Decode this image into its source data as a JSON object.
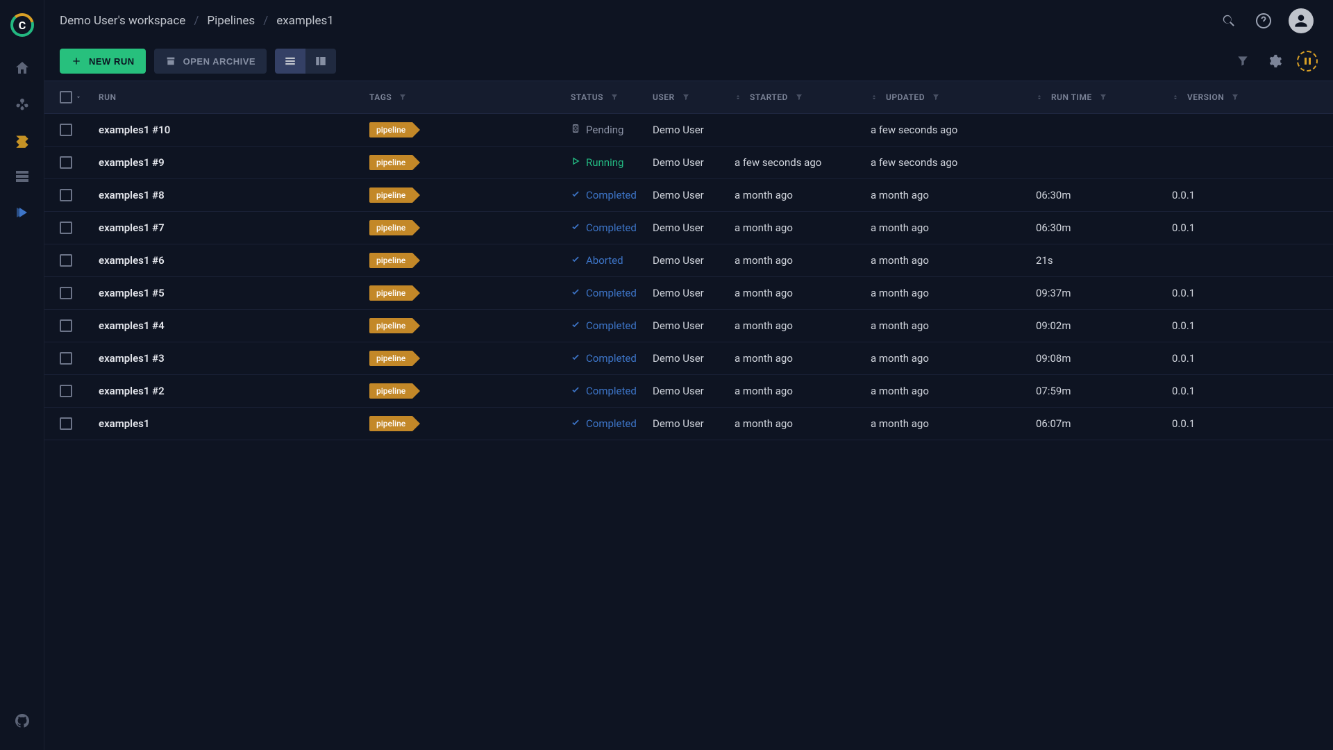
{
  "breadcrumb": [
    "Demo User's workspace",
    "Pipelines",
    "examples1"
  ],
  "toolbar": {
    "new_run": "NEW RUN",
    "open_archive": "OPEN ARCHIVE"
  },
  "columns": {
    "run": "RUN",
    "tags": "TAGS",
    "status": "STATUS",
    "user": "USER",
    "started": "STARTED",
    "updated": "UPDATED",
    "runtime": "RUN TIME",
    "version": "VERSION"
  },
  "tag_label": "pipeline",
  "colors": {
    "background": "#0e1422",
    "header_bg": "#151c2e",
    "accent_green": "#27c07d",
    "accent_amber": "#d9a026",
    "tag_bg": "#c38828",
    "status_pending": "#8a91a4",
    "status_running": "#23b881",
    "status_completed": "#3d75c8",
    "text_primary": "#d0d4dc",
    "text_muted": "#7c8498"
  },
  "rows": [
    {
      "run": "examples1 #10",
      "tag": "pipeline",
      "status": "Pending",
      "status_kind": "pending",
      "user": "Demo User",
      "started": "",
      "updated": "a few seconds ago",
      "runtime": "",
      "version": ""
    },
    {
      "run": "examples1 #9",
      "tag": "pipeline",
      "status": "Running",
      "status_kind": "running",
      "user": "Demo User",
      "started": "a few seconds ago",
      "updated": "a few seconds ago",
      "runtime": "",
      "version": ""
    },
    {
      "run": "examples1 #8",
      "tag": "pipeline",
      "status": "Completed",
      "status_kind": "completed",
      "user": "Demo User",
      "started": "a month ago",
      "updated": "a month ago",
      "runtime": "06:30m",
      "version": "0.0.1"
    },
    {
      "run": "examples1 #7",
      "tag": "pipeline",
      "status": "Completed",
      "status_kind": "completed",
      "user": "Demo User",
      "started": "a month ago",
      "updated": "a month ago",
      "runtime": "06:30m",
      "version": "0.0.1"
    },
    {
      "run": "examples1 #6",
      "tag": "pipeline",
      "status": "Aborted",
      "status_kind": "aborted",
      "user": "Demo User",
      "started": "a month ago",
      "updated": "a month ago",
      "runtime": "21s",
      "version": ""
    },
    {
      "run": "examples1 #5",
      "tag": "pipeline",
      "status": "Completed",
      "status_kind": "completed",
      "user": "Demo User",
      "started": "a month ago",
      "updated": "a month ago",
      "runtime": "09:37m",
      "version": "0.0.1"
    },
    {
      "run": "examples1 #4",
      "tag": "pipeline",
      "status": "Completed",
      "status_kind": "completed",
      "user": "Demo User",
      "started": "a month ago",
      "updated": "a month ago",
      "runtime": "09:02m",
      "version": "0.0.1"
    },
    {
      "run": "examples1 #3",
      "tag": "pipeline",
      "status": "Completed",
      "status_kind": "completed",
      "user": "Demo User",
      "started": "a month ago",
      "updated": "a month ago",
      "runtime": "09:08m",
      "version": "0.0.1"
    },
    {
      "run": "examples1 #2",
      "tag": "pipeline",
      "status": "Completed",
      "status_kind": "completed",
      "user": "Demo User",
      "started": "a month ago",
      "updated": "a month ago",
      "runtime": "07:59m",
      "version": "0.0.1"
    },
    {
      "run": "examples1",
      "tag": "pipeline",
      "status": "Completed",
      "status_kind": "completed",
      "user": "Demo User",
      "started": "a month ago",
      "updated": "a month ago",
      "runtime": "06:07m",
      "version": "0.0.1"
    }
  ]
}
